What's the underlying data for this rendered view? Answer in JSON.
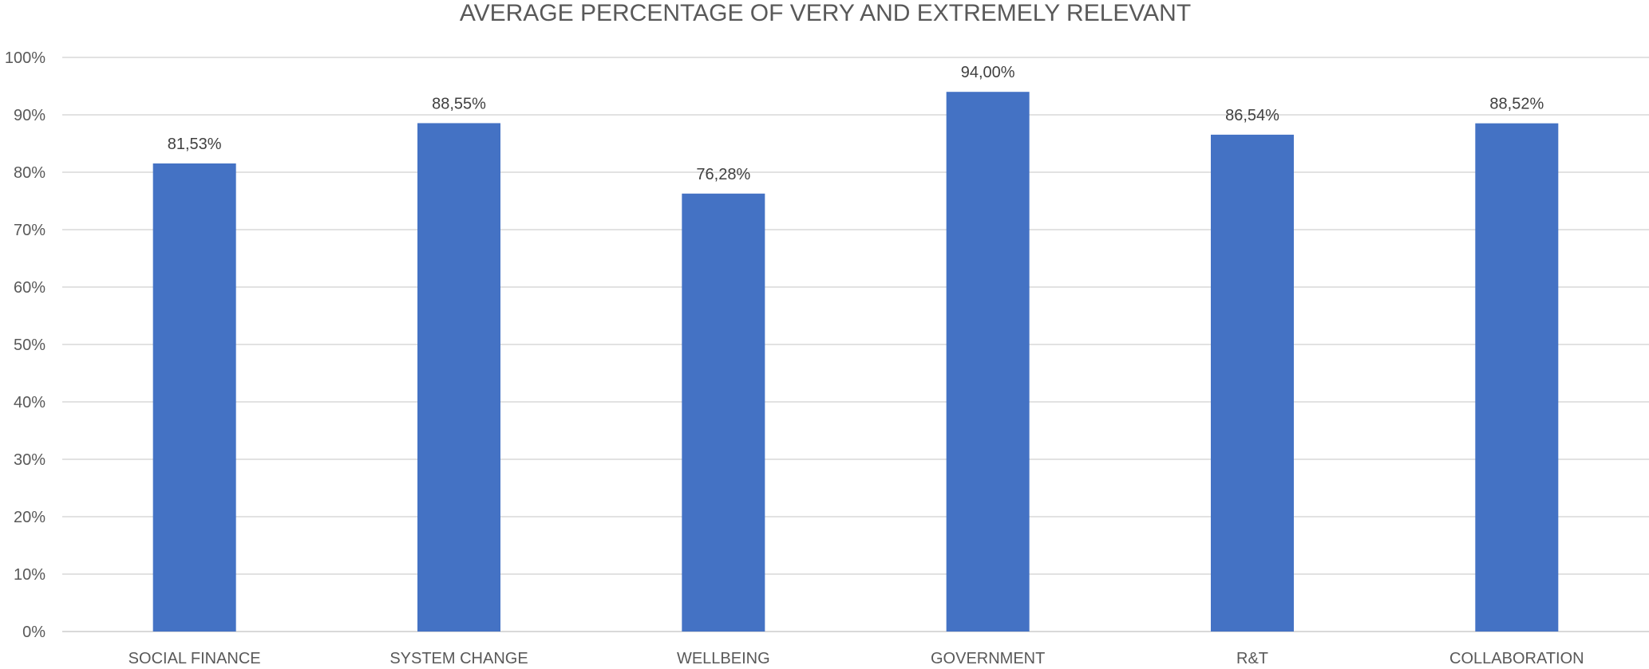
{
  "colors": {
    "bar": "#4472c4",
    "gridline": "#d9d9d9",
    "text": "#595959",
    "data_label": "#404040",
    "background": "#ffffff"
  },
  "chart_data": {
    "type": "bar",
    "title": "AVERAGE PERCENTAGE OF VERY AND EXTREMELY RELEVANT",
    "xlabel": "",
    "ylabel": "",
    "categories": [
      "SOCIAL FINANCE",
      "SYSTEM CHANGE",
      "WELLBEING",
      "GOVERNMENT",
      "R&T",
      "COLLABORATION"
    ],
    "values": [
      81.53,
      88.55,
      76.28,
      94.0,
      86.54,
      88.52
    ],
    "data_labels": [
      "81,53%",
      "88,55%",
      "76,28%",
      "94,00%",
      "86,54%",
      "88,52%"
    ],
    "ylim": [
      0,
      100
    ],
    "y_ticks": [
      0,
      10,
      20,
      30,
      40,
      50,
      60,
      70,
      80,
      90,
      100
    ],
    "y_tick_labels": [
      "0%",
      "10%",
      "20%",
      "30%",
      "40%",
      "50%",
      "60%",
      "70%",
      "80%",
      "90%",
      "100%"
    ],
    "grid": true,
    "legend": "none"
  }
}
